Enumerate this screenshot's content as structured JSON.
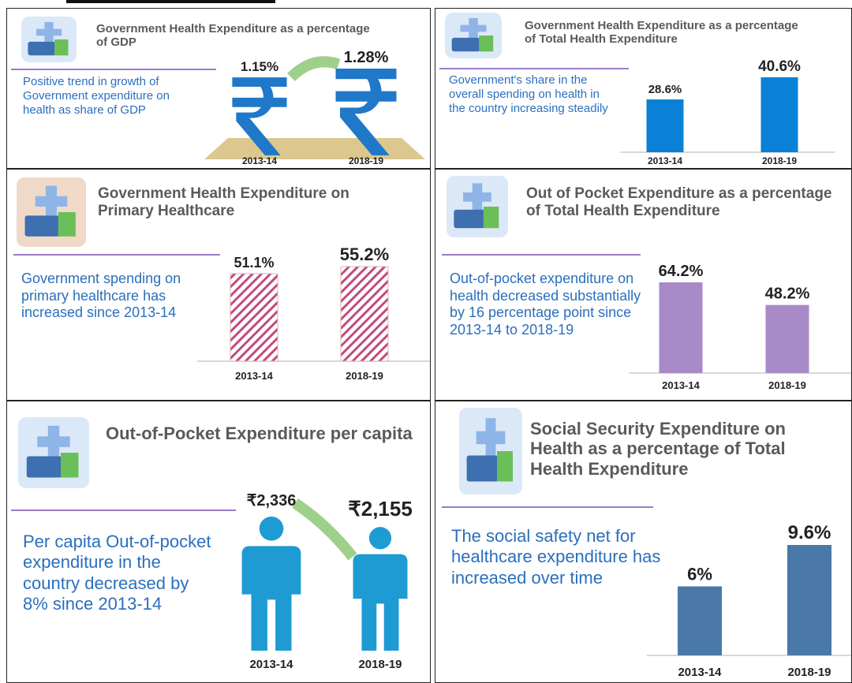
{
  "chart_data": [
    {
      "type": "rupee",
      "title": "Government Health Expenditure as a percentage of GDP",
      "annotation": "Positive trend in growth of Government expenditure on health as share of GDP",
      "categories": [
        "2013-14",
        "2018-19"
      ],
      "values": [
        1.15,
        1.28
      ],
      "value_labels": [
        "1.15%",
        "1.28%"
      ],
      "color": "#1f78c8"
    },
    {
      "type": "bar",
      "title": "Government Health Expenditure as a percentage of Total Health Expenditure",
      "annotation": "Government's share in the overall spending on health in the country increasing steadily",
      "categories": [
        "2013-14",
        "2018-19"
      ],
      "values": [
        28.6,
        40.6
      ],
      "value_labels": [
        "28.6%",
        "40.6%"
      ],
      "color": "#0a80d6"
    },
    {
      "type": "bar",
      "hatched": true,
      "title": "Government Health Expenditure on Primary Healthcare",
      "annotation": "Government spending on primary healthcare has increased since 2013-14",
      "categories": [
        "2013-14",
        "2018-19"
      ],
      "values": [
        51.1,
        55.2
      ],
      "value_labels": [
        "51.1%",
        "55.2%"
      ],
      "color": "#c24a7c"
    },
    {
      "type": "bar",
      "title": "Out of Pocket Expenditure as a percentage of Total Health Expenditure",
      "annotation": "Out-of-pocket expenditure on health decreased substantially by 16 percentage point since 2013-14 to 2018-19",
      "categories": [
        "2013-14",
        "2018-19"
      ],
      "values": [
        64.2,
        48.2
      ],
      "value_labels": [
        "64.2%",
        "48.2%"
      ],
      "color": "#a88ac8"
    },
    {
      "type": "person",
      "title": "Out-of-Pocket Expenditure per capita",
      "annotation": "Per capita Out-of-pocket expenditure in the country decreased by 8% since 2013-14",
      "categories": [
        "2013-14",
        "2018-19"
      ],
      "values": [
        2336,
        2155
      ],
      "value_labels": [
        "₹2,336",
        "₹2,155"
      ],
      "color": "#1e9bd2"
    },
    {
      "type": "bar",
      "title": "Social Security Expenditure on Health as a percentage of Total Health Expenditure",
      "annotation": "The social safety net for healthcare expenditure has increased over time",
      "categories": [
        "2013-14",
        "2018-19"
      ],
      "values": [
        6,
        9.6
      ],
      "value_labels": [
        "6%",
        "9.6%"
      ],
      "color": "#4a78a8"
    }
  ]
}
